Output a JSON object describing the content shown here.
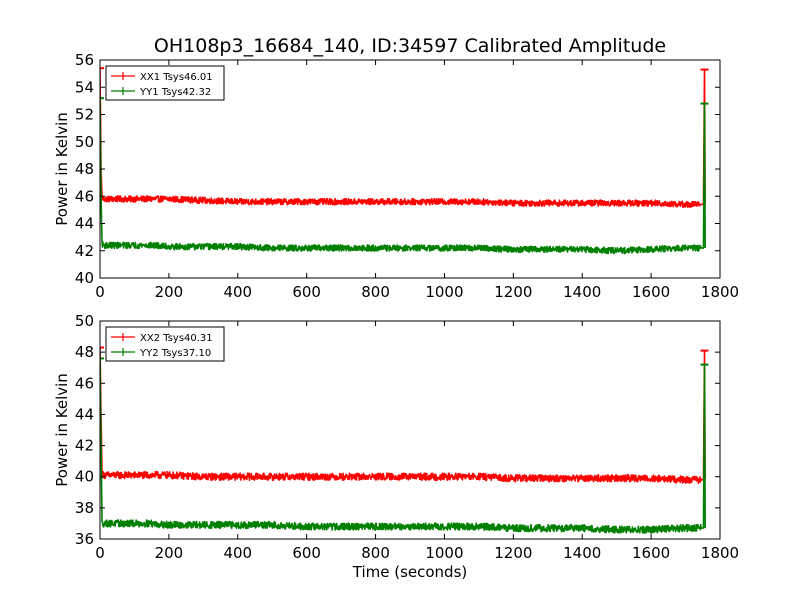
{
  "title": "OH108p3_16684_140, ID:34597 Calibrated Amplitude",
  "xlabel": "Time (seconds)",
  "colors": {
    "xx": "#ff0000",
    "yy": "#008000"
  },
  "chart_data": [
    {
      "type": "line",
      "title": "OH108p3_16684_140, ID:34597 Calibrated Amplitude",
      "xlabel": "",
      "ylabel": "Power in Kelvin",
      "xlim": [
        0,
        1800
      ],
      "ylim": [
        40,
        56
      ],
      "xticks": [
        "0",
        "200",
        "400",
        "600",
        "800",
        "1000",
        "1200",
        "1400",
        "1600",
        "1800"
      ],
      "yticks": [
        "40",
        "42",
        "44",
        "46",
        "48",
        "50",
        "52",
        "54",
        "56"
      ],
      "legend_position": "top-left",
      "grid": false,
      "series": [
        {
          "name": "XX1 Tsys46.01",
          "color": "#ff0000",
          "x": [
            0,
            3,
            6,
            10,
            50,
            100,
            150,
            200,
            300,
            400,
            500,
            600,
            700,
            800,
            900,
            1000,
            1100,
            1200,
            1300,
            1400,
            1500,
            1600,
            1700,
            1745,
            1752,
            1755,
            1757
          ],
          "y": [
            55.4,
            48.0,
            45.9,
            45.8,
            45.8,
            45.8,
            45.8,
            45.8,
            45.7,
            45.6,
            45.6,
            45.6,
            45.6,
            45.6,
            45.6,
            45.6,
            45.6,
            45.5,
            45.5,
            45.5,
            45.5,
            45.5,
            45.4,
            45.4,
            45.4,
            55.3,
            45.5
          ]
        },
        {
          "name": "YY1 Tsys42.32",
          "color": "#008000",
          "x": [
            0,
            3,
            6,
            10,
            50,
            100,
            150,
            200,
            300,
            400,
            500,
            600,
            700,
            800,
            900,
            1000,
            1100,
            1200,
            1300,
            1400,
            1500,
            1600,
            1700,
            1745,
            1752,
            1755,
            1757
          ],
          "y": [
            53.2,
            46.0,
            42.5,
            42.4,
            42.4,
            42.4,
            42.4,
            42.3,
            42.3,
            42.3,
            42.2,
            42.2,
            42.2,
            42.2,
            42.2,
            42.2,
            42.2,
            42.1,
            42.1,
            42.1,
            42.0,
            42.1,
            42.2,
            42.2,
            42.2,
            52.8,
            42.2
          ]
        }
      ]
    },
    {
      "type": "line",
      "title": "",
      "xlabel": "Time (seconds)",
      "ylabel": "Power in Kelvin",
      "xlim": [
        0,
        1800
      ],
      "ylim": [
        36,
        50
      ],
      "xticks": [
        "0",
        "200",
        "400",
        "600",
        "800",
        "1000",
        "1200",
        "1400",
        "1600",
        "1800"
      ],
      "yticks": [
        "36",
        "38",
        "40",
        "42",
        "44",
        "46",
        "48",
        "50"
      ],
      "legend_position": "top-left",
      "grid": false,
      "series": [
        {
          "name": "XX2 Tsys40.31",
          "color": "#ff0000",
          "x": [
            0,
            3,
            6,
            10,
            50,
            100,
            150,
            200,
            300,
            400,
            500,
            600,
            700,
            800,
            900,
            1000,
            1100,
            1200,
            1300,
            1400,
            1500,
            1600,
            1700,
            1745,
            1752,
            1755,
            1757
          ],
          "y": [
            48.3,
            44.0,
            40.2,
            40.1,
            40.1,
            40.1,
            40.1,
            40.1,
            40.0,
            40.0,
            40.0,
            40.0,
            40.0,
            40.0,
            40.0,
            40.0,
            40.0,
            39.9,
            39.9,
            39.9,
            39.9,
            39.9,
            39.8,
            39.8,
            39.8,
            48.1,
            39.9
          ]
        },
        {
          "name": "YY2 Tsys37.10",
          "color": "#008000",
          "x": [
            0,
            3,
            6,
            10,
            50,
            100,
            150,
            200,
            300,
            400,
            500,
            600,
            700,
            800,
            900,
            1000,
            1100,
            1200,
            1300,
            1400,
            1500,
            1600,
            1700,
            1745,
            1752,
            1755,
            1757
          ],
          "y": [
            47.6,
            42.0,
            37.0,
            37.0,
            37.0,
            37.0,
            37.0,
            36.9,
            36.9,
            36.9,
            36.9,
            36.8,
            36.8,
            36.8,
            36.8,
            36.8,
            36.8,
            36.7,
            36.7,
            36.7,
            36.6,
            36.6,
            36.7,
            36.7,
            36.7,
            47.2,
            36.7
          ]
        }
      ]
    }
  ]
}
